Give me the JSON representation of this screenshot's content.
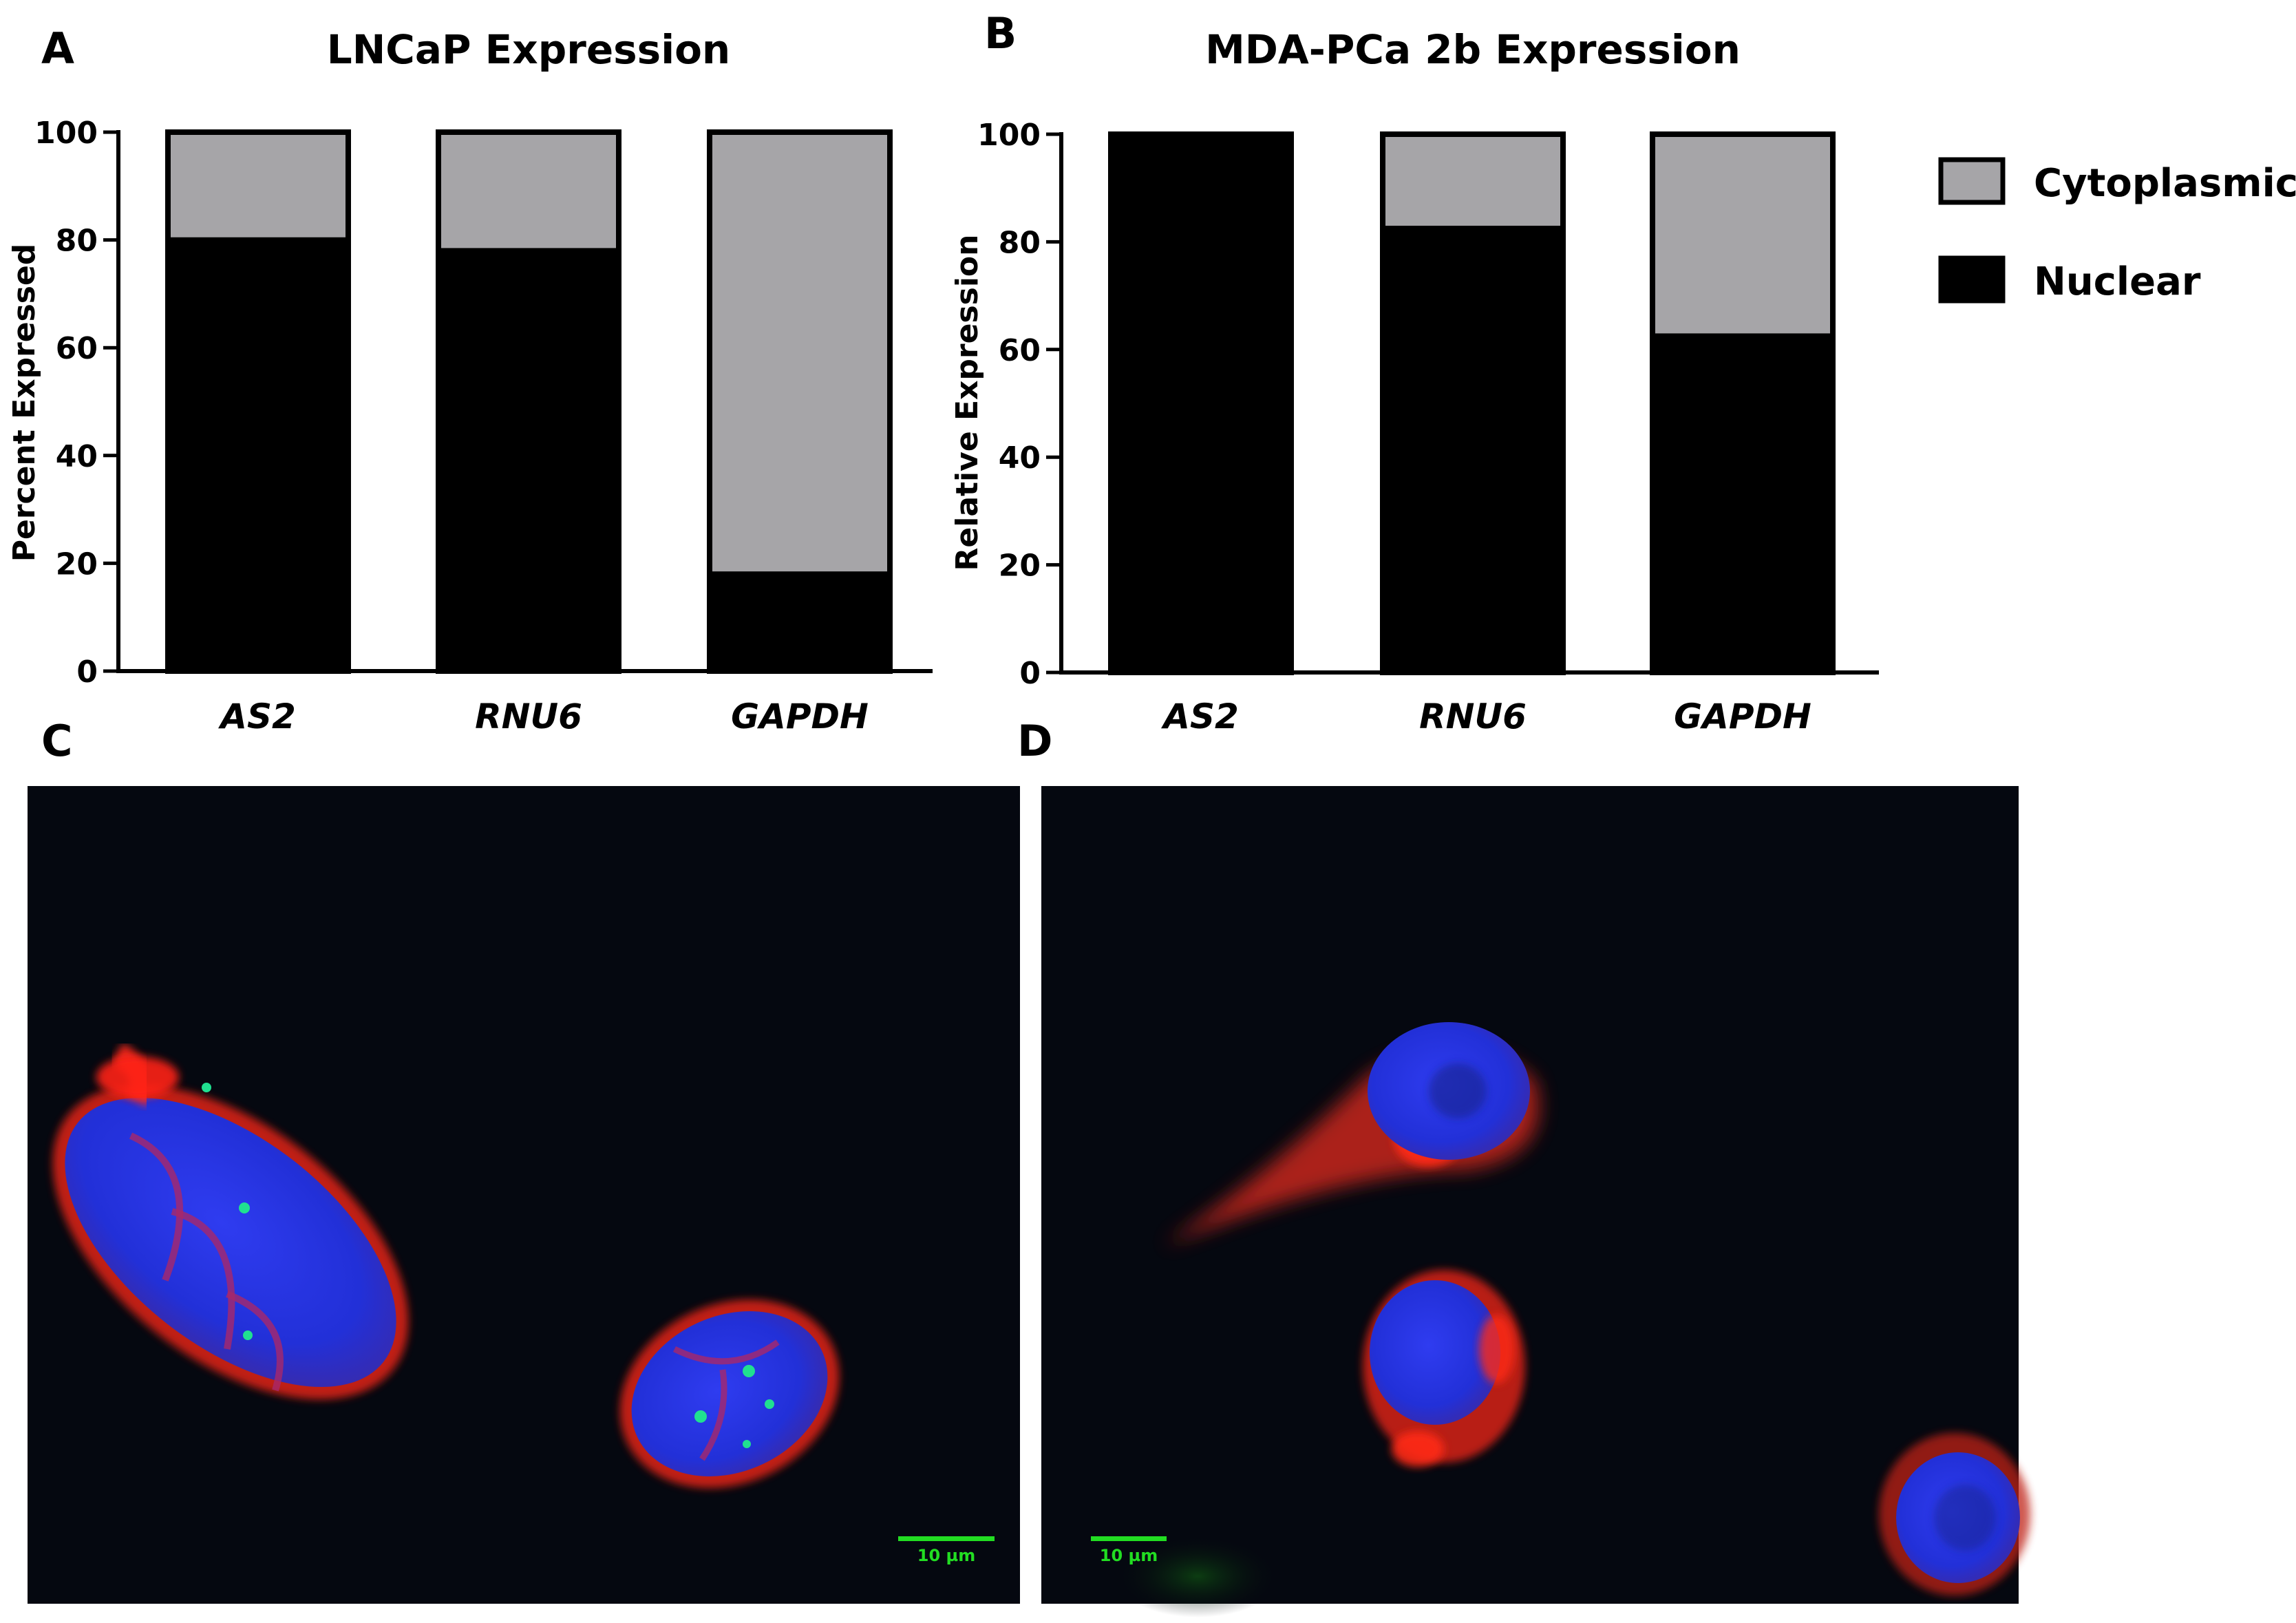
{
  "panel_letters": {
    "a": "A",
    "b": "B",
    "c": "C",
    "d": "D"
  },
  "colors": {
    "nuclear": "#000000",
    "cytoplasmic": "#a6a5a8",
    "micrograph_bg": "#050810",
    "nucleus_stain": "#2230d8",
    "membrane_stain": "#e8241c",
    "probe_stain": "#20e090",
    "scalebar": "#22dd22"
  },
  "legend": {
    "position": "right",
    "items": [
      {
        "label": "Cytoplasmic",
        "color": "#a6a5a8"
      },
      {
        "label": "Nuclear",
        "color": "#000000"
      }
    ]
  },
  "chart_data": [
    {
      "type": "bar",
      "stacked": true,
      "title": "LNCaP Expression",
      "ylabel": "Percent Expressed",
      "xlabel": "",
      "categories": [
        "AS2",
        "RNU6",
        "GAPDH"
      ],
      "ylim": [
        0,
        100
      ],
      "yticks": [
        0,
        20,
        40,
        60,
        80,
        100
      ],
      "series": [
        {
          "name": "Nuclear",
          "values": [
            80.5,
            78.5,
            18.5
          ]
        },
        {
          "name": "Cytoplasmic",
          "values": [
            19.5,
            21.5,
            81.5
          ]
        }
      ]
    },
    {
      "type": "bar",
      "stacked": true,
      "title": "MDA-PCa 2b Expression",
      "ylabel": "Relative Expression",
      "xlabel": "",
      "categories": [
        "AS2",
        "RNU6",
        "GAPDH"
      ],
      "ylim": [
        0,
        100
      ],
      "yticks": [
        0,
        20,
        40,
        60,
        80,
        100
      ],
      "series": [
        {
          "name": "Nuclear",
          "values": [
            100,
            83,
            63
          ]
        },
        {
          "name": "Cytoplasmic",
          "values": [
            0,
            17,
            37
          ]
        }
      ]
    }
  ],
  "micrographs": {
    "c": {
      "scalebar_label": "10 µm"
    },
    "d": {
      "scalebar_label": "10 µm"
    }
  }
}
